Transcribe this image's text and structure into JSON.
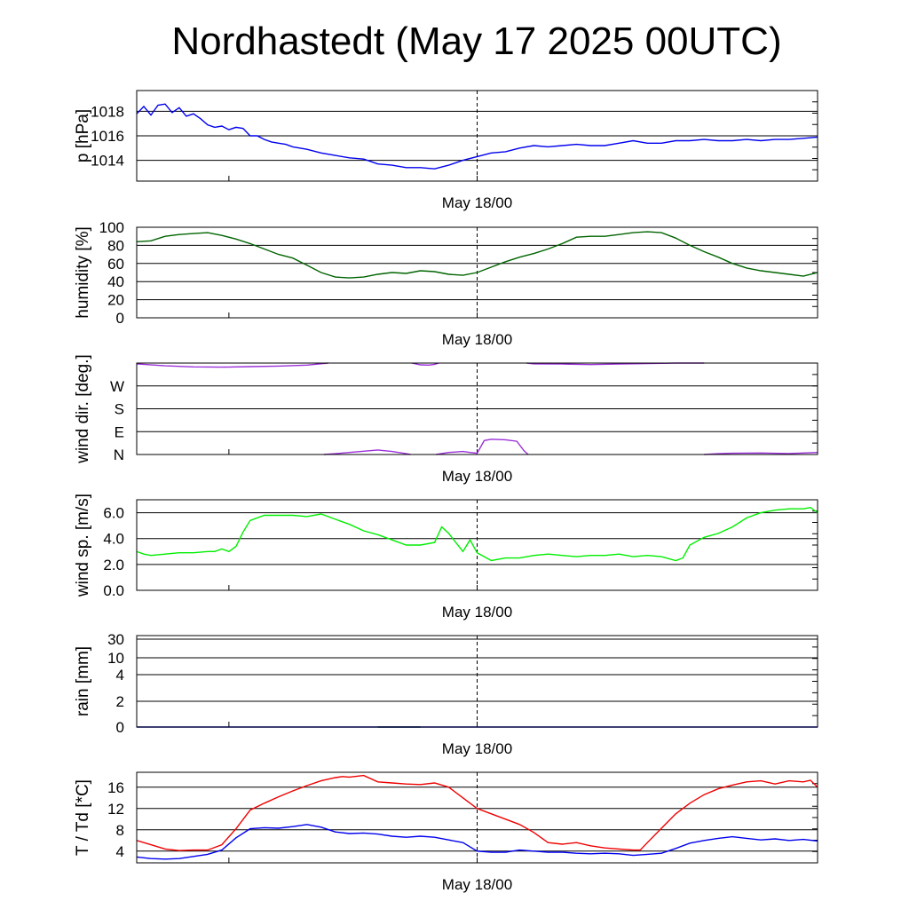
{
  "title": "Nordhastedt (May 17 2025 00UTC)",
  "colors": {
    "pressure": "#0000ee",
    "humidity": "#006400",
    "wind_direction": "#9b30d9",
    "wind_speed": "#00ee00",
    "rain": "#0000cc",
    "temperature": "#ee0000",
    "dewpoint": "#0000ee",
    "grid": "#000000"
  },
  "chart_data": [
    {
      "type": "line",
      "ylabel": "p [hPa]",
      "xtick_label": "May 18/00",
      "ylim": [
        1012.3,
        1019.7
      ],
      "yticks": [
        "1014",
        "1016",
        "1018"
      ],
      "ytick_values": [
        1014,
        1016,
        1018
      ],
      "series": [
        {
          "key": "pressure",
          "x": [
            0,
            0.5,
            1,
            1.5,
            2,
            2.5,
            3,
            3.5,
            4,
            4.5,
            5,
            5.5,
            6,
            6.5,
            7,
            7.5,
            8,
            8.5,
            9,
            9.5,
            10,
            10.5,
            11,
            11.5,
            12,
            13,
            14,
            15,
            16,
            17,
            18,
            19,
            20,
            21,
            22,
            23,
            24,
            25,
            26,
            27,
            28,
            29,
            30,
            31,
            32,
            33,
            34,
            35,
            36,
            37,
            38,
            39,
            40,
            41,
            42,
            43,
            44,
            45,
            46,
            47,
            48
          ],
          "y": [
            1017.8,
            1018.4,
            1017.7,
            1018.5,
            1018.6,
            1017.9,
            1018.3,
            1017.6,
            1017.8,
            1017.4,
            1016.9,
            1016.7,
            1016.8,
            1016.5,
            1016.7,
            1016.6,
            1016.0,
            1016.0,
            1015.7,
            1015.5,
            1015.4,
            1015.3,
            1015.1,
            1015.0,
            1014.9,
            1014.6,
            1014.4,
            1014.2,
            1014.1,
            1013.7,
            1013.6,
            1013.4,
            1013.4,
            1013.3,
            1013.6,
            1014.0,
            1014.3,
            1014.6,
            1014.7,
            1015.0,
            1015.2,
            1015.1,
            1015.2,
            1015.3,
            1015.2,
            1015.2,
            1015.4,
            1015.6,
            1015.4,
            1015.4,
            1015.6,
            1015.6,
            1015.7,
            1015.6,
            1015.6,
            1015.7,
            1015.6,
            1015.7,
            1015.7,
            1015.8,
            1015.9
          ]
        }
      ]
    },
    {
      "type": "line",
      "ylabel": "humidity [%]",
      "xtick_label": "May 18/00",
      "ylim": [
        0,
        100
      ],
      "yticks": [
        "0",
        "20",
        "40",
        "60",
        "80",
        "100"
      ],
      "ytick_values": [
        0,
        20,
        40,
        60,
        80,
        100
      ],
      "series": [
        {
          "key": "humidity",
          "x": [
            0,
            1,
            2,
            3,
            4,
            5,
            6,
            7,
            8,
            9,
            10,
            11,
            12,
            13,
            14,
            15,
            16,
            17,
            18,
            19,
            20,
            21,
            22,
            23,
            24,
            25,
            26,
            27,
            28,
            29,
            30,
            31,
            32,
            33,
            34,
            35,
            36,
            37,
            38,
            39,
            40,
            41,
            42,
            43,
            44,
            45,
            46,
            47,
            48
          ],
          "y": [
            84,
            85,
            90,
            92,
            93,
            94,
            91,
            87,
            82,
            76,
            70,
            66,
            58,
            50,
            45,
            44,
            45,
            48,
            50,
            49,
            52,
            51,
            48,
            47,
            50,
            56,
            62,
            67,
            71,
            76,
            82,
            89,
            90,
            90,
            92,
            94,
            95,
            94,
            88,
            80,
            73,
            67,
            60,
            55,
            52,
            50,
            48,
            46,
            50
          ]
        }
      ]
    },
    {
      "type": "line",
      "ylabel": "wind dir. [deg.]",
      "xtick_label": "May 18/00",
      "ylim": [
        0,
        360
      ],
      "yticks": [
        "N",
        "E",
        "S",
        "W"
      ],
      "ytick_values": [
        0,
        90,
        180,
        270
      ],
      "series": [
        {
          "key": "wind_direction",
          "segments": [
            {
              "x": [
                0,
                2,
                4,
                6,
                8,
                10,
                12,
                13.5
              ],
              "y": [
                357,
                349,
                345,
                344,
                346,
                348,
                352,
                360
              ]
            },
            {
              "x": [
                13.2,
                14,
                15,
                16,
                17,
                18,
                19,
                19.3
              ],
              "y": [
                0,
                3,
                8,
                13,
                18,
                12,
                3,
                0
              ]
            },
            {
              "x": [
                19.4,
                20,
                20.6,
                21,
                21.3
              ],
              "y": [
                360,
                353,
                352,
                355,
                360
              ]
            },
            {
              "x": [
                21.1,
                22,
                23,
                23.5,
                24,
                24.5,
                25,
                26,
                26.8,
                27.3,
                27.6
              ],
              "y": [
                0,
                8,
                12,
                8,
                5,
                55,
                60,
                58,
                52,
                15,
                0
              ]
            },
            {
              "x": [
                27.5,
                28,
                30,
                32,
                34,
                36,
                37,
                38,
                39,
                40
              ],
              "y": [
                360,
                357,
                356,
                354,
                356,
                358,
                359,
                360,
                360,
                360
              ]
            },
            {
              "x": [
                40,
                41,
                42,
                44,
                46,
                48
              ],
              "y": [
                0,
                3,
                5,
                6,
                4,
                8
              ]
            }
          ]
        }
      ]
    },
    {
      "type": "line",
      "ylabel": "wind sp. [m/s]",
      "xtick_label": "May 18/00",
      "ylim": [
        0,
        7
      ],
      "yticks": [
        "0.0",
        "2.0",
        "4.0",
        "6.0"
      ],
      "ytick_values": [
        0,
        2,
        4,
        6
      ],
      "series": [
        {
          "key": "wind_speed",
          "x": [
            0,
            0.5,
            1,
            2,
            3,
            4,
            5,
            5.5,
            6,
            6.5,
            7,
            7.5,
            8,
            9,
            10,
            11,
            12,
            13,
            14,
            15,
            16,
            17,
            18,
            19,
            20,
            21,
            21.5,
            22,
            23,
            23.5,
            24,
            25,
            26,
            27,
            28,
            29,
            30,
            31,
            32,
            33,
            34,
            35,
            36,
            37,
            38,
            38.5,
            39,
            40,
            41,
            42,
            43,
            44,
            45,
            46,
            47,
            47.5,
            48
          ],
          "y": [
            3.0,
            2.8,
            2.7,
            2.8,
            2.9,
            2.9,
            3.0,
            3.0,
            3.2,
            3.0,
            3.4,
            4.5,
            5.4,
            5.8,
            5.8,
            5.8,
            5.7,
            5.9,
            5.5,
            5.1,
            4.6,
            4.3,
            3.9,
            3.5,
            3.5,
            3.7,
            4.9,
            4.4,
            3.0,
            3.9,
            2.9,
            2.3,
            2.5,
            2.5,
            2.7,
            2.8,
            2.7,
            2.6,
            2.7,
            2.7,
            2.8,
            2.6,
            2.7,
            2.6,
            2.3,
            2.5,
            3.5,
            4.1,
            4.4,
            4.9,
            5.6,
            6.0,
            6.2,
            6.3,
            6.3,
            6.4,
            6.0
          ]
        }
      ]
    },
    {
      "type": "line",
      "ylabel": "rain [mm]",
      "xtick_label": "May 18/00",
      "scale": "nonlinear",
      "yticks": [
        "0",
        "2",
        "4",
        "10",
        "30"
      ],
      "ytick_values": [
        0,
        2,
        4,
        10,
        30
      ],
      "series": [
        {
          "key": "humidity",
          "x": [
            0,
            48
          ],
          "y": [
            0,
            0
          ],
          "x_start": 17,
          "x_end": 20
        },
        {
          "key": "rain",
          "x": [
            0,
            48
          ],
          "y": [
            0,
            0
          ]
        }
      ]
    },
    {
      "type": "line",
      "ylabel": "T / Td [*C]",
      "xtick_label": "May 18/00",
      "ylim": [
        1.8,
        18.8
      ],
      "yticks": [
        "4",
        "8",
        "12",
        "16"
      ],
      "ytick_values": [
        4,
        8,
        12,
        16
      ],
      "series": [
        {
          "key": "temperature",
          "x": [
            0,
            1,
            2,
            3,
            4,
            5,
            5.5,
            6,
            7,
            8,
            9,
            10,
            11,
            12,
            13,
            14,
            14.5,
            15,
            16,
            17,
            18,
            19,
            20,
            21,
            22,
            23,
            24,
            25,
            26,
            27,
            28,
            29,
            30,
            31,
            32,
            33,
            34,
            35,
            35.5,
            36,
            37,
            38,
            39,
            40,
            41,
            42,
            43,
            44,
            45,
            46,
            47,
            47.5,
            48
          ],
          "y": [
            6.0,
            5.2,
            4.4,
            4.1,
            4.2,
            4.2,
            4.7,
            5.2,
            8.2,
            11.7,
            13.0,
            14.2,
            15.3,
            16.3,
            17.2,
            17.8,
            18.0,
            17.9,
            18.2,
            17.0,
            16.8,
            16.6,
            16.5,
            16.8,
            16.0,
            14.0,
            12.0,
            11.0,
            10.0,
            9.0,
            7.5,
            5.6,
            5.3,
            5.6,
            5.0,
            4.6,
            4.4,
            4.2,
            4.2,
            5.6,
            8.3,
            11.0,
            13.0,
            14.6,
            15.7,
            16.4,
            17.0,
            17.2,
            16.6,
            17.2,
            17.0,
            17.3,
            16.0
          ]
        },
        {
          "key": "dewpoint",
          "x": [
            0,
            1,
            2,
            3,
            4,
            5,
            6,
            7,
            8,
            9,
            10,
            11,
            12,
            13,
            14,
            15,
            16,
            17,
            18,
            19,
            20,
            21,
            22,
            23,
            24,
            25,
            26,
            27,
            28,
            29,
            30,
            31,
            32,
            33,
            34,
            35,
            36,
            37,
            38,
            39,
            40,
            41,
            42,
            43,
            44,
            45,
            46,
            47,
            48
          ],
          "y": [
            2.9,
            2.6,
            2.5,
            2.6,
            3.0,
            3.4,
            4.2,
            6.5,
            8.2,
            8.4,
            8.3,
            8.6,
            9.0,
            8.5,
            7.6,
            7.3,
            7.4,
            7.2,
            6.8,
            6.6,
            6.8,
            6.6,
            6.1,
            5.6,
            4.0,
            3.8,
            3.8,
            4.2,
            4.0,
            3.8,
            3.8,
            3.6,
            3.5,
            3.6,
            3.5,
            3.2,
            3.4,
            3.6,
            4.5,
            5.5,
            6.0,
            6.4,
            6.7,
            6.4,
            6.1,
            6.3,
            6.0,
            6.2,
            5.9
          ]
        }
      ]
    }
  ]
}
